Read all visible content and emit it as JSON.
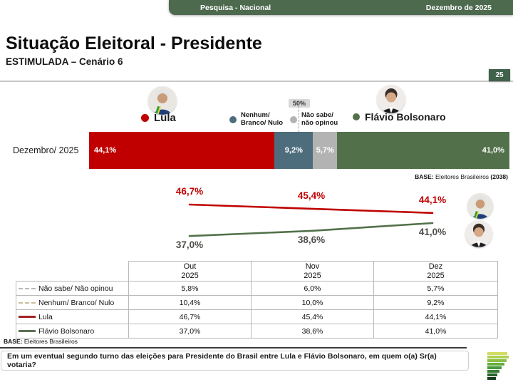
{
  "header": {
    "left_label": "Pesquisa - Nacional",
    "right_label": "Dezembro de 2025"
  },
  "title": "Situação Eleitoral - Presidente",
  "subtitle": "ESTIMULADA – Cenário 6",
  "page_number": "25",
  "colors": {
    "lula_red": "#c00000",
    "flavio_green": "#52714a",
    "nenhum_slate": "#4d6d7d",
    "nao_sabe_gray": "#b3b3b3",
    "header_green": "#4d6a4f"
  },
  "legend": {
    "lula": {
      "label": "Lula"
    },
    "nenhum": {
      "line1": "Nenhum/",
      "line2": "Branco/ Nulo"
    },
    "nao_sabe": {
      "line1": "Não sabe/",
      "line2": "não opinou"
    },
    "flavio": {
      "label": "Flávio Bolsonaro"
    },
    "marker_50": "50%"
  },
  "bar_chart": {
    "row_label": "Dezembro/ 2025",
    "base": {
      "label": "BASE:",
      "text": " Eleitores Brasileiros ",
      "count": "(2038)"
    }
  },
  "chart_data": [
    {
      "type": "bar",
      "subtype": "horizontal-stacked",
      "categories": [
        "Dezembro/ 2025"
      ],
      "series": [
        {
          "name": "Lula",
          "values": [
            44.1
          ],
          "label": "44,1%",
          "color": "#c00000"
        },
        {
          "name": "Nenhum/ Branco/ Nulo",
          "values": [
            9.2
          ],
          "label": "9,2%",
          "color": "#4d6d7d"
        },
        {
          "name": "Não sabe/ não opinou",
          "values": [
            5.7
          ],
          "label": "5,7%",
          "color": "#b3b3b3"
        },
        {
          "name": "Flávio Bolsonaro",
          "values": [
            41.0
          ],
          "label": "41,0%",
          "color": "#52714a"
        }
      ],
      "annotation": "50%",
      "xlim": [
        0,
        100
      ]
    },
    {
      "type": "line",
      "x": [
        "Out 2025",
        "Nov 2025",
        "Dez 2025"
      ],
      "series": [
        {
          "name": "Lula",
          "values": [
            46.7,
            45.4,
            44.1
          ],
          "labels": [
            "46,7%",
            "45,4%",
            "44,1%"
          ],
          "color": "#c00000"
        },
        {
          "name": "Flávio Bolsonaro",
          "values": [
            37.0,
            38.6,
            41.0
          ],
          "labels": [
            "37,0%",
            "38,6%",
            "41,0%"
          ],
          "color": "#52714a"
        }
      ],
      "legend_position": "right-avatars",
      "grid": false
    }
  ],
  "table": {
    "periods": [
      {
        "line1": "Out",
        "line2": "2025"
      },
      {
        "line1": "Nov",
        "line2": "2025"
      },
      {
        "line1": "Dez",
        "line2": "2025"
      }
    ],
    "rows": [
      {
        "label": "Não sabe/ Não opinou",
        "swatch": "dashed-gray",
        "values": [
          "5,8%",
          "6,0%",
          "5,7%"
        ]
      },
      {
        "label": "Nenhum/ Branco/ Nulo",
        "swatch": "dashed-tan",
        "values": [
          "10,4%",
          "10,0%",
          "9,2%"
        ]
      },
      {
        "label": "Lula",
        "swatch": "solid-red",
        "values": [
          "46,7%",
          "45,4%",
          "44,1%"
        ]
      },
      {
        "label": "Flávio Bolsonaro",
        "swatch": "solid-green",
        "values": [
          "37,0%",
          "38,6%",
          "41,0%"
        ]
      }
    ]
  },
  "footer": {
    "base_label": "BASE:",
    "base_text": " Eleitores Brasileiros",
    "question": "Em um eventual segundo turno das eleições para Presidente do Brasil entre Lula e Flávio Bolsonaro, em quem o(a) Sr(a) votaria?"
  },
  "brand_logo_colors": [
    "#d3dd63",
    "#b0cf52",
    "#8cc04a",
    "#66ad41",
    "#4a983c",
    "#377f35",
    "#27632c",
    "#173f20"
  ]
}
